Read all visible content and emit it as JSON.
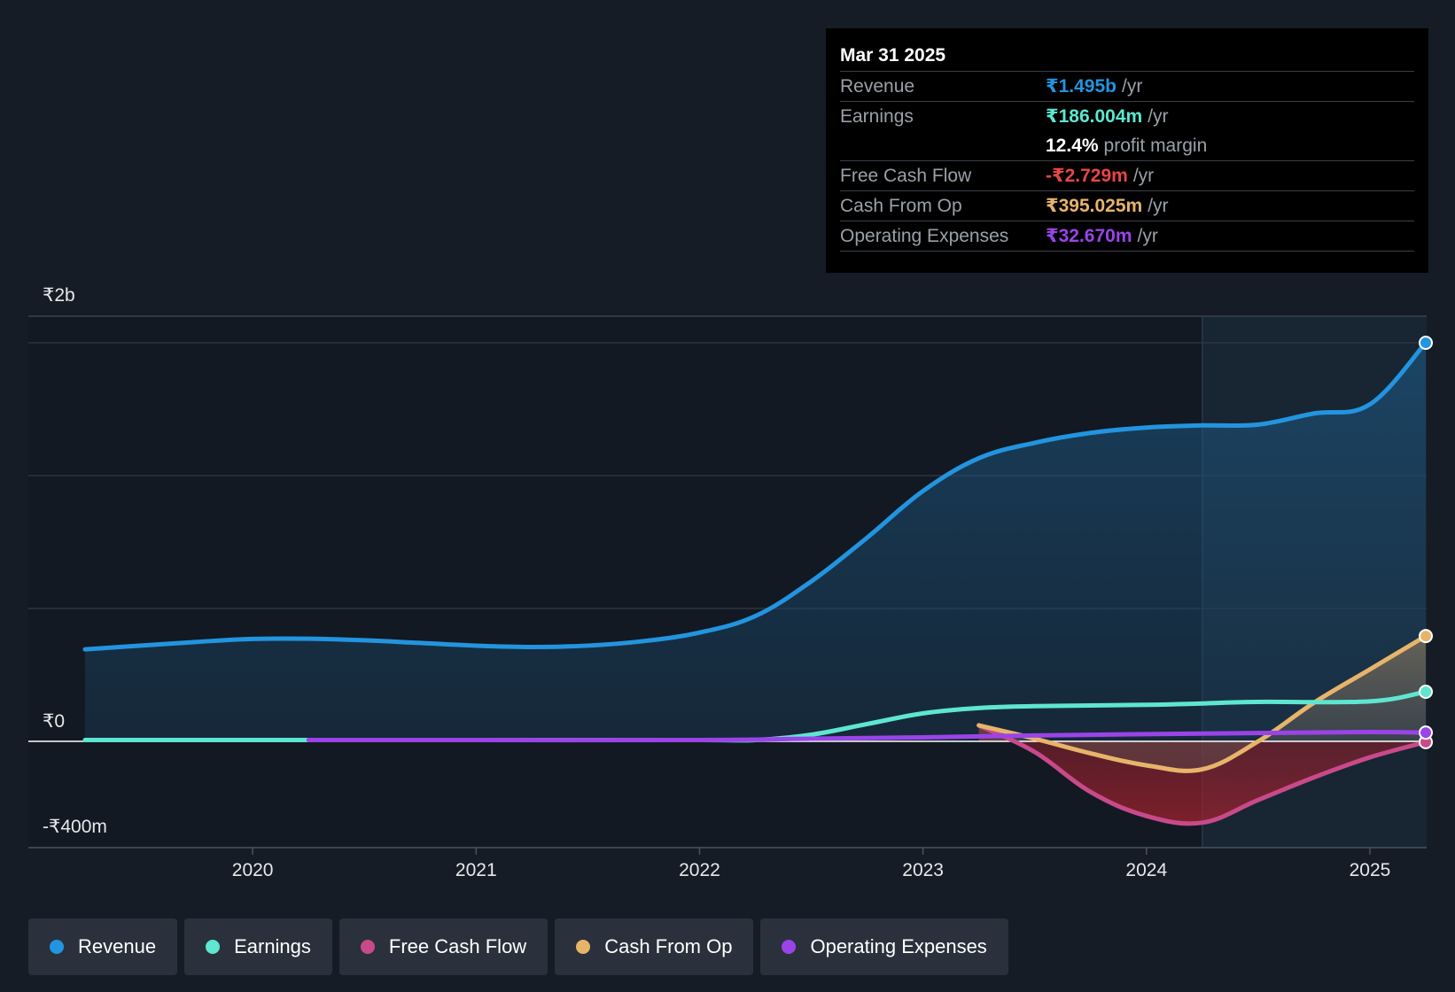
{
  "colors": {
    "revenue": "#2394df",
    "earnings": "#5ee6d0",
    "free_cash_flow": "#c84a8a",
    "cash_from_op": "#e8b46a",
    "operating_expenses": "#9a44e8",
    "negative": "#e84646"
  },
  "tooltip": {
    "date": "Mar 31 2025",
    "rows": [
      {
        "label": "Revenue",
        "value": "₹1.495b",
        "unit": "/yr"
      },
      {
        "label": "Earnings",
        "value": "₹186.004m",
        "unit": "/yr"
      },
      {
        "label": "",
        "value": "12.4%",
        "unit": "profit margin"
      },
      {
        "label": "Free Cash Flow",
        "value": "-₹2.729m",
        "unit": "/yr"
      },
      {
        "label": "Cash From Op",
        "value": "₹395.025m",
        "unit": "/yr"
      },
      {
        "label": "Operating Expenses",
        "value": "₹32.670m",
        "unit": "/yr"
      }
    ]
  },
  "legend": [
    {
      "label": "Revenue",
      "color_key": "revenue"
    },
    {
      "label": "Earnings",
      "color_key": "earnings"
    },
    {
      "label": "Free Cash Flow",
      "color_key": "free_cash_flow"
    },
    {
      "label": "Cash From Op",
      "color_key": "cash_from_op"
    },
    {
      "label": "Operating Expenses",
      "color_key": "operating_expenses"
    }
  ],
  "chart_data": {
    "type": "area",
    "title": "",
    "xlabel": "",
    "ylabel": "",
    "ylim": [
      -400,
      2000
    ],
    "xlim": [
      2019.25,
      2025.25
    ],
    "y_tick_labels": [
      {
        "value": 2000,
        "label": "₹2b"
      },
      {
        "value": 0,
        "label": "₹0"
      },
      {
        "value": -400,
        "label": "-₹400m"
      }
    ],
    "x_ticks": [
      2020,
      2021,
      2022,
      2023,
      2024,
      2025
    ],
    "x_tick_labels": [
      "2020",
      "2021",
      "2022",
      "2023",
      "2024",
      "2025"
    ],
    "gridlines": [
      1500,
      1000,
      500
    ],
    "forecast_start": 2024.25,
    "series": [
      {
        "name": "Revenue",
        "key": "revenue",
        "fill": true,
        "x": [
          2019.25,
          2019.75,
          2020.0,
          2020.25,
          2020.5,
          2020.75,
          2021.0,
          2021.25,
          2021.5,
          2021.75,
          2022.0,
          2022.25,
          2022.5,
          2022.75,
          2023.0,
          2023.25,
          2023.5,
          2023.75,
          2024.0,
          2024.25,
          2024.5,
          2024.75,
          2025.0,
          2025.25
        ],
        "y": [
          345,
          373,
          384,
          385,
          379,
          369,
          359,
          354,
          359,
          376,
          408,
          470,
          600,
          764,
          939,
          1062,
          1120,
          1157,
          1177,
          1185,
          1188,
          1230,
          1264,
          1495
        ]
      },
      {
        "name": "Earnings",
        "key": "earnings",
        "fill": false,
        "x": [
          2019.25,
          2020.0,
          2020.25,
          2021.0,
          2022.0,
          2022.25,
          2022.5,
          2022.75,
          2023.0,
          2023.25,
          2023.5,
          2024.0,
          2024.25,
          2024.5,
          2025.0,
          2025.25
        ],
        "y": [
          5,
          5,
          5,
          5,
          5,
          5,
          25,
          65,
          105,
          125,
          132,
          137,
          142,
          148,
          150,
          186.004
        ]
      },
      {
        "name": "Free Cash Flow",
        "key": "free_cash_flow",
        "fill": true,
        "x": [
          2023.25,
          2023.5,
          2023.75,
          2024.0,
          2024.25,
          2024.5,
          2024.75,
          2025.0,
          2025.25
        ],
        "y": [
          60,
          -40,
          -190,
          -280,
          -305,
          -220,
          -135,
          -60,
          -2.729
        ]
      },
      {
        "name": "Cash From Op",
        "key": "cash_from_op",
        "fill": true,
        "x": [
          2023.25,
          2023.5,
          2023.75,
          2024.0,
          2024.25,
          2024.5,
          2024.75,
          2025.0,
          2025.25
        ],
        "y": [
          60,
          10,
          -45,
          -90,
          -105,
          0,
          145,
          270,
          395.025
        ]
      },
      {
        "name": "Operating Expenses",
        "key": "operating_expenses",
        "fill": false,
        "x": [
          2020.25,
          2021.0,
          2022.0,
          2022.5,
          2023.0,
          2023.5,
          2024.0,
          2024.5,
          2025.0,
          2025.25
        ],
        "y": [
          5,
          5,
          5,
          10,
          15,
          22,
          27,
          31,
          35,
          32.67
        ]
      }
    ]
  }
}
